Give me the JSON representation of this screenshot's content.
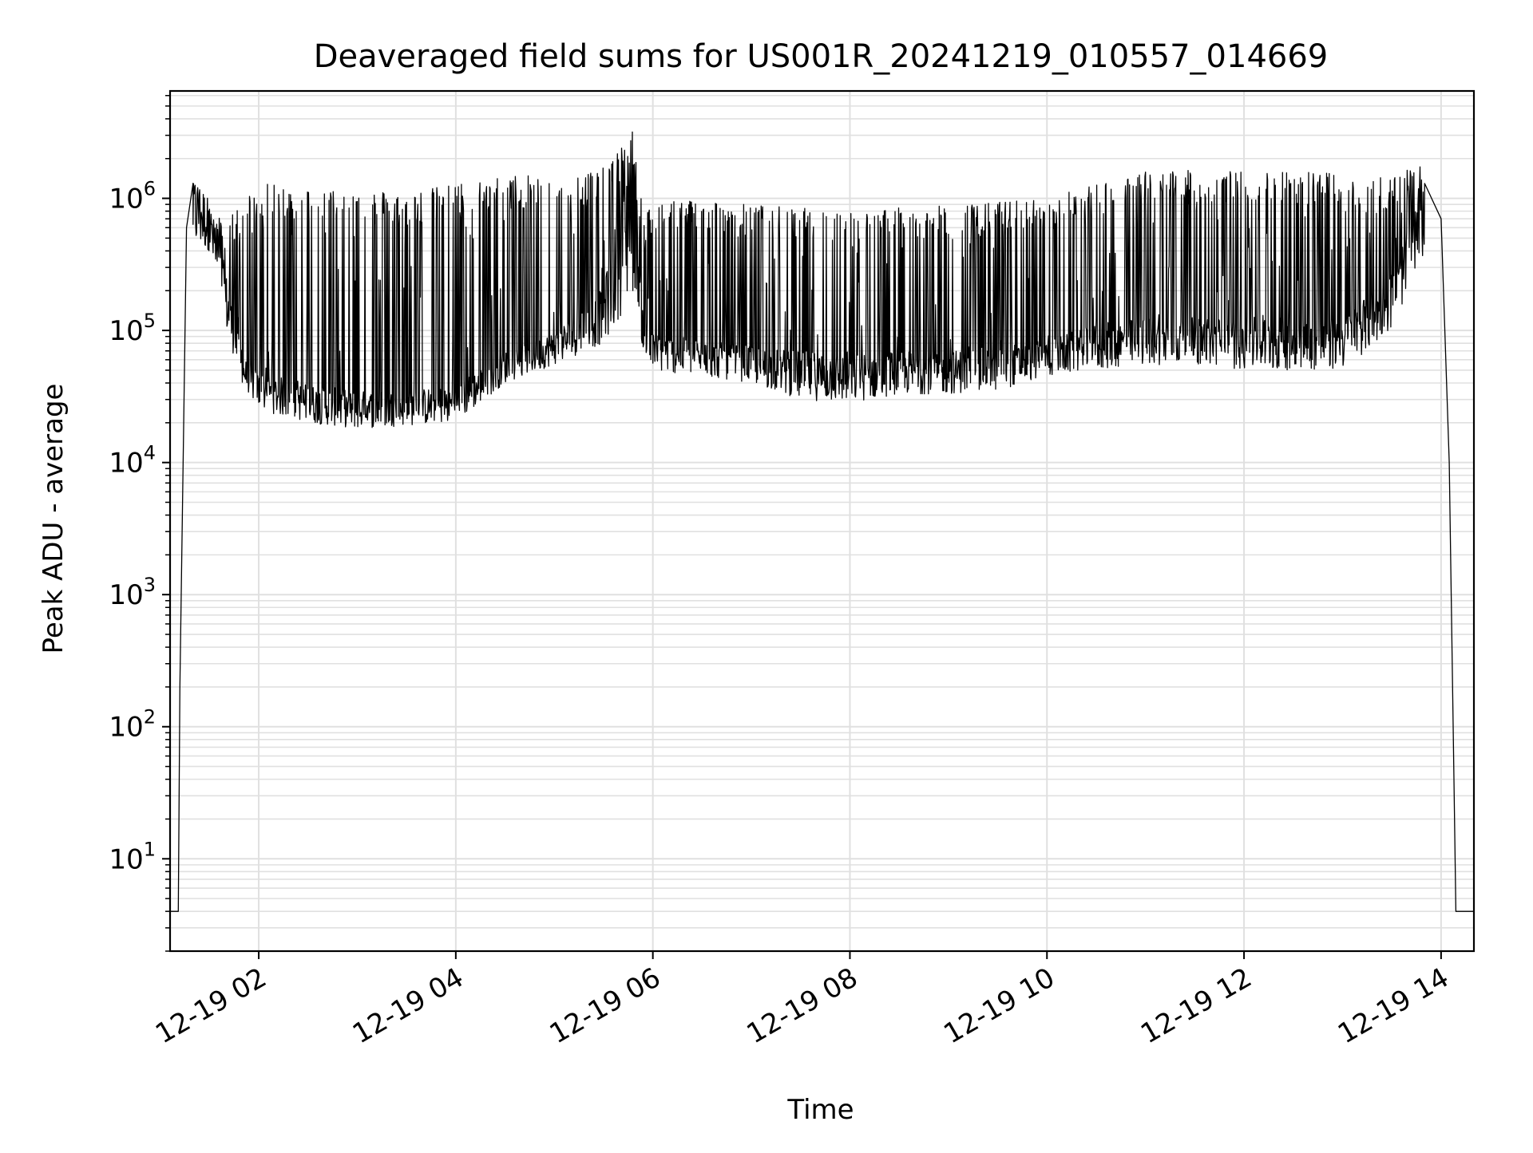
{
  "chart_data": {
    "type": "line",
    "title": "Deaveraged field sums for US001R_20241219_010557_014669",
    "xlabel": "Time",
    "ylabel": "Peak ADU - average",
    "xscale": "time",
    "yscale": "log",
    "xlim": [
      "2024-12-19 01:06",
      "2024-12-19 14:20"
    ],
    "ylim": [
      2,
      6500000
    ],
    "grid": true,
    "colors": {
      "line": "#000000",
      "grid": "#e0e0e0",
      "axes": "#000000",
      "background": "#ffffff"
    },
    "xticks": [
      {
        "value": "2024-12-19 02:00",
        "label": "12-19 02"
      },
      {
        "value": "2024-12-19 04:00",
        "label": "12-19 04"
      },
      {
        "value": "2024-12-19 06:00",
        "label": "12-19 06"
      },
      {
        "value": "2024-12-19 08:00",
        "label": "12-19 08"
      },
      {
        "value": "2024-12-19 10:00",
        "label": "12-19 10"
      },
      {
        "value": "2024-12-19 12:00",
        "label": "12-19 12"
      },
      {
        "value": "2024-12-19 14:00",
        "label": "12-19 14"
      }
    ],
    "yticks": [
      {
        "value": 10,
        "base": "10",
        "exp": "1"
      },
      {
        "value": 100,
        "base": "10",
        "exp": "2"
      },
      {
        "value": 1000,
        "base": "10",
        "exp": "3"
      },
      {
        "value": 10000,
        "base": "10",
        "exp": "4"
      },
      {
        "value": 100000,
        "base": "10",
        "exp": "5"
      },
      {
        "value": 1000000,
        "base": "10",
        "exp": "6"
      }
    ],
    "series": [
      {
        "envelope_upper": [
          [
            "2024-12-19 01:06",
            4
          ],
          [
            "2024-12-19 01:11",
            4
          ],
          [
            "2024-12-19 01:12",
            200
          ],
          [
            "2024-12-19 01:16",
            600000
          ],
          [
            "2024-12-19 01:20",
            1300000
          ],
          [
            "2024-12-19 01:26",
            1100000
          ],
          [
            "2024-12-19 01:28",
            2300000
          ],
          [
            "2024-12-19 01:32",
            700000
          ],
          [
            "2024-12-19 01:45",
            800000
          ],
          [
            "2024-12-19 02:00",
            1300000
          ],
          [
            "2024-12-19 02:30",
            1200000
          ],
          [
            "2024-12-19 03:00",
            1200000
          ],
          [
            "2024-12-19 03:30",
            1100000
          ],
          [
            "2024-12-19 04:00",
            1300000
          ],
          [
            "2024-12-19 04:30",
            1500000
          ],
          [
            "2024-12-19 05:00",
            1500000
          ],
          [
            "2024-12-19 05:30",
            1700000
          ],
          [
            "2024-12-19 05:48",
            3300000
          ],
          [
            "2024-12-19 05:52",
            1000000
          ],
          [
            "2024-12-19 06:30",
            1000000
          ],
          [
            "2024-12-19 07:00",
            900000
          ],
          [
            "2024-12-19 07:30",
            850000
          ],
          [
            "2024-12-19 08:00",
            800000
          ],
          [
            "2024-12-19 08:30",
            850000
          ],
          [
            "2024-12-19 09:00",
            880000
          ],
          [
            "2024-12-19 09:30",
            950000
          ],
          [
            "2024-12-19 10:00",
            1000000
          ],
          [
            "2024-12-19 10:30",
            1300000
          ],
          [
            "2024-12-19 11:00",
            1600000
          ],
          [
            "2024-12-19 11:30",
            1650000
          ],
          [
            "2024-12-19 12:00",
            1600000
          ],
          [
            "2024-12-19 12:30",
            1650000
          ],
          [
            "2024-12-19 13:00",
            1600000
          ],
          [
            "2024-12-19 13:30",
            1500000
          ],
          [
            "2024-12-19 13:50",
            1800000
          ],
          [
            "2024-12-19 14:00",
            700000
          ],
          [
            "2024-12-19 14:05",
            10000
          ],
          [
            "2024-12-19 14:08",
            30
          ],
          [
            "2024-12-19 14:09",
            4
          ],
          [
            "2024-12-19 14:20",
            4
          ]
        ],
        "envelope_lower": [
          [
            "2024-12-19 01:30",
            400000
          ],
          [
            "2024-12-19 01:40",
            100000
          ],
          [
            "2024-12-19 01:50",
            40000
          ],
          [
            "2024-12-19 02:00",
            25000
          ],
          [
            "2024-12-19 02:30",
            20000
          ],
          [
            "2024-12-19 03:00",
            18000
          ],
          [
            "2024-12-19 03:30",
            19000
          ],
          [
            "2024-12-19 04:00",
            20000
          ],
          [
            "2024-12-19 04:30",
            40000
          ],
          [
            "2024-12-19 05:00",
            55000
          ],
          [
            "2024-12-19 05:30",
            80000
          ],
          [
            "2024-12-19 05:50",
            200000
          ],
          [
            "2024-12-19 05:55",
            50000
          ],
          [
            "2024-12-19 06:30",
            45000
          ],
          [
            "2024-12-19 07:00",
            40000
          ],
          [
            "2024-12-19 07:30",
            30000
          ],
          [
            "2024-12-19 08:00",
            28000
          ],
          [
            "2024-12-19 08:30",
            33000
          ],
          [
            "2024-12-19 09:00",
            33000
          ],
          [
            "2024-12-19 09:30",
            35000
          ],
          [
            "2024-12-19 10:00",
            45000
          ],
          [
            "2024-12-19 10:30",
            50000
          ],
          [
            "2024-12-19 11:00",
            55000
          ],
          [
            "2024-12-19 11:30",
            55000
          ],
          [
            "2024-12-19 12:00",
            50000
          ],
          [
            "2024-12-19 12:30",
            50000
          ],
          [
            "2024-12-19 13:00",
            50000
          ],
          [
            "2024-12-19 13:30",
            100000
          ],
          [
            "2024-12-19 13:50",
            400000
          ]
        ],
        "baseline": [
          [
            "2024-12-19 01:20",
            1300000
          ],
          [
            "2024-12-19 01:30",
            700000
          ],
          [
            "2024-12-19 01:40",
            200000
          ],
          [
            "2024-12-19 01:50",
            45000
          ],
          [
            "2024-12-19 02:00",
            35000
          ],
          [
            "2024-12-19 02:30",
            28000
          ],
          [
            "2024-12-19 03:00",
            25000
          ],
          [
            "2024-12-19 03:30",
            25000
          ],
          [
            "2024-12-19 04:00",
            28000
          ],
          [
            "2024-12-19 04:30",
            50000
          ],
          [
            "2024-12-19 05:00",
            70000
          ],
          [
            "2024-12-19 05:30",
            150000
          ],
          [
            "2024-12-19 05:48",
            2500000
          ],
          [
            "2024-12-19 05:55",
            70000
          ],
          [
            "2024-12-19 06:30",
            60000
          ],
          [
            "2024-12-19 07:00",
            55000
          ],
          [
            "2024-12-19 07:30",
            50000
          ],
          [
            "2024-12-19 08:00",
            50000
          ],
          [
            "2024-12-19 08:30",
            50000
          ],
          [
            "2024-12-19 09:00",
            50000
          ],
          [
            "2024-12-19 09:30",
            55000
          ],
          [
            "2024-12-19 10:00",
            60000
          ],
          [
            "2024-12-19 10:30",
            80000
          ],
          [
            "2024-12-19 11:00",
            90000
          ],
          [
            "2024-12-19 11:30",
            90000
          ],
          [
            "2024-12-19 12:00",
            90000
          ],
          [
            "2024-12-19 12:30",
            90000
          ],
          [
            "2024-12-19 13:00",
            90000
          ],
          [
            "2024-12-19 13:30",
            200000
          ],
          [
            "2024-12-19 13:50",
            900000
          ]
        ]
      }
    ]
  }
}
